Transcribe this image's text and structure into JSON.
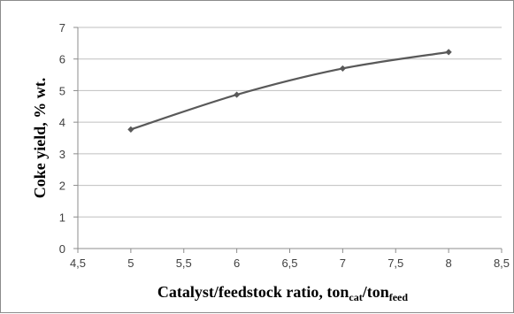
{
  "chart_data": {
    "type": "line",
    "title": "",
    "xlabel": {
      "parts": [
        {
          "text": "Catalyst/feedstock ratio, ton",
          "sub": false
        },
        {
          "text": "cat",
          "sub": true
        },
        {
          "text": "/ton",
          "sub": false
        },
        {
          "text": "feed",
          "sub": true
        }
      ]
    },
    "ylabel": "Coke yield, % wt.",
    "xlim": [
      4.5,
      8.5
    ],
    "ylim": [
      0,
      7
    ],
    "x_ticks": [
      4.5,
      5,
      5.5,
      6,
      6.5,
      7,
      7.5,
      8,
      8.5
    ],
    "x_tick_labels": [
      "4,5",
      "5",
      "5,5",
      "6",
      "6,5",
      "7",
      "7,5",
      "8",
      "8,5"
    ],
    "y_ticks": [
      0,
      1,
      2,
      3,
      4,
      5,
      6,
      7
    ],
    "y_tick_labels": [
      "0",
      "1",
      "2",
      "3",
      "4",
      "5",
      "6",
      "7"
    ],
    "grid": "horizontal",
    "legend": "none",
    "series": [
      {
        "color": "#595959",
        "marker": "diamond",
        "smooth": true,
        "x": [
          5,
          6,
          7,
          8
        ],
        "y": [
          3.77,
          4.87,
          5.7,
          6.22
        ]
      }
    ]
  }
}
